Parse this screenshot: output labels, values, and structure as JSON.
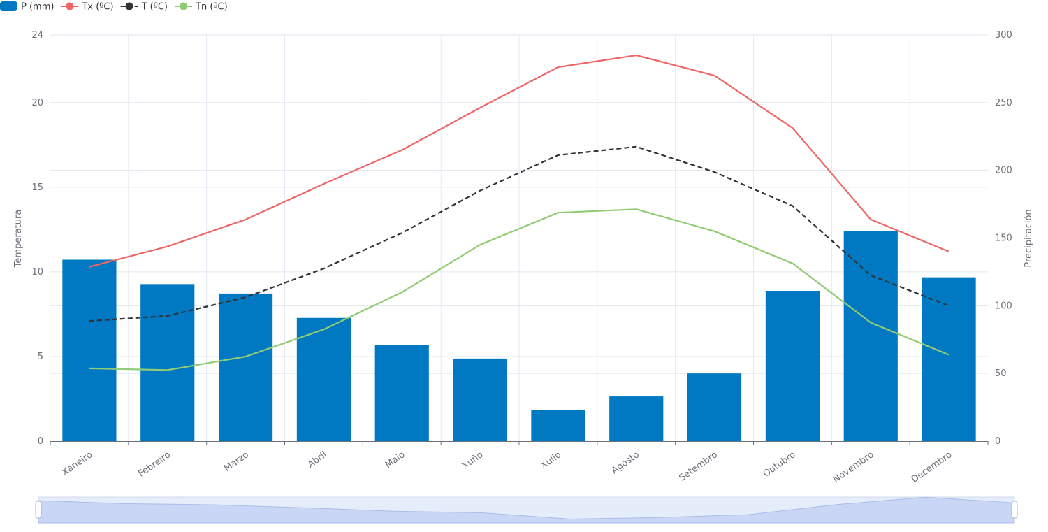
{
  "chart_data": {
    "type": "bar",
    "categories": [
      "Xaneiro",
      "Febreiro",
      "Marzo",
      "Abril",
      "Maio",
      "Xuño",
      "Xullo",
      "Agosto",
      "Setembro",
      "Outubro",
      "Novembro",
      "Decembro"
    ],
    "series": [
      {
        "name": "P (mm)",
        "kind": "bar",
        "axis": "right",
        "color": "#0078c2",
        "values": [
          134,
          116,
          109,
          91,
          71,
          61,
          23,
          33,
          50,
          111,
          155,
          121
        ]
      },
      {
        "name": "Tx (ºC)",
        "kind": "line",
        "axis": "left",
        "color": "#ee6666",
        "dashed": false,
        "values": [
          10.3,
          11.5,
          13.1,
          15.2,
          17.2,
          19.7,
          22.1,
          22.8,
          21.6,
          18.5,
          13.1,
          11.2
        ]
      },
      {
        "name": "T (ºC)",
        "kind": "line",
        "axis": "left",
        "color": "#333333",
        "dashed": true,
        "values": [
          7.1,
          7.4,
          8.5,
          10.2,
          12.3,
          14.8,
          16.9,
          17.4,
          15.9,
          13.9,
          9.8,
          8.0
        ]
      },
      {
        "name": "Tn (ºC)",
        "kind": "line",
        "axis": "left",
        "color": "#91cc75",
        "dashed": false,
        "values": [
          4.3,
          4.2,
          5.0,
          6.6,
          8.8,
          11.6,
          13.5,
          13.7,
          12.4,
          10.5,
          7.0,
          5.1
        ]
      }
    ],
    "y_left": {
      "label": "Temperatura",
      "min": 0,
      "max": 24,
      "ticks": [
        0,
        5,
        10,
        15,
        20,
        24
      ]
    },
    "y_right": {
      "label": "Precipitación",
      "min": 0,
      "max": 300,
      "ticks": [
        0,
        50,
        100,
        150,
        200,
        250,
        300
      ]
    },
    "legend_position": "top-left",
    "grid": true,
    "datazoom": {
      "range": [
        0,
        100
      ]
    }
  }
}
